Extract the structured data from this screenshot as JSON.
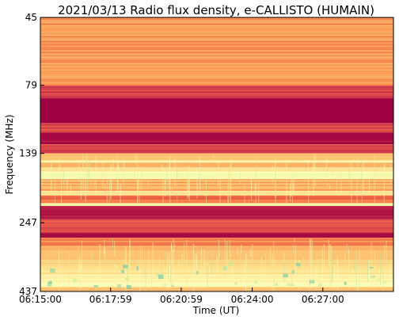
{
  "chart_data": {
    "type": "heatmap",
    "title": "2021/03/13  Radio flux density, e-CALLISTO (HUMAIN)",
    "xlabel": "Time (UT)",
    "ylabel": "Frequency (MHz)",
    "x_ticks": [
      "06:15:00",
      "06:17:59",
      "06:20:59",
      "06:24:00",
      "06:27:00"
    ],
    "x_tick_seconds": [
      0,
      179,
      359,
      540,
      720
    ],
    "xlim_seconds": [
      0,
      900
    ],
    "y_ticks": [
      45,
      79,
      139,
      247,
      437
    ],
    "ylim": [
      437,
      45
    ],
    "y_scale": "log",
    "grid": false,
    "colorscale": [
      "#9e0142",
      "#d53e4f",
      "#f46d43",
      "#fdae61",
      "#fee08b",
      "#ffffbf",
      "#e6f598",
      "#abdda4",
      "#66c2a5"
    ],
    "bands": [
      {
        "from": 45,
        "to": 79,
        "level": 0.34
      },
      {
        "from": 79,
        "to": 88,
        "level": 0.15
      },
      {
        "from": 88,
        "to": 108,
        "level": 0.0
      },
      {
        "from": 108,
        "to": 117,
        "level": 0.17
      },
      {
        "from": 117,
        "to": 129,
        "level": 0.02
      },
      {
        "from": 129,
        "to": 139,
        "level": 0.15
      },
      {
        "from": 139,
        "to": 147,
        "level": 0.42
      },
      {
        "from": 147,
        "to": 150,
        "level": 0.6
      },
      {
        "from": 150,
        "to": 156,
        "level": 0.35
      },
      {
        "from": 156,
        "to": 162,
        "level": 0.55
      },
      {
        "from": 162,
        "to": 172,
        "level": 0.66
      },
      {
        "from": 172,
        "to": 190,
        "level": 0.38
      },
      {
        "from": 190,
        "to": 197,
        "level": 0.56
      },
      {
        "from": 197,
        "to": 210,
        "level": 0.25
      },
      {
        "from": 210,
        "to": 215,
        "level": 0.7
      },
      {
        "from": 215,
        "to": 240,
        "level": 0.05
      },
      {
        "from": 240,
        "to": 247,
        "level": 0.2
      },
      {
        "from": 247,
        "to": 268,
        "level": 0.18
      },
      {
        "from": 268,
        "to": 280,
        "level": 0.03
      },
      {
        "from": 280,
        "to": 300,
        "level": 0.3
      },
      {
        "from": 300,
        "to": 340,
        "level": 0.42
      },
      {
        "from": 340,
        "to": 380,
        "level": 0.5
      },
      {
        "from": 380,
        "to": 405,
        "level": 0.58
      },
      {
        "from": 405,
        "to": 420,
        "level": 0.66
      },
      {
        "from": 420,
        "to": 437,
        "level": 0.45
      }
    ]
  }
}
